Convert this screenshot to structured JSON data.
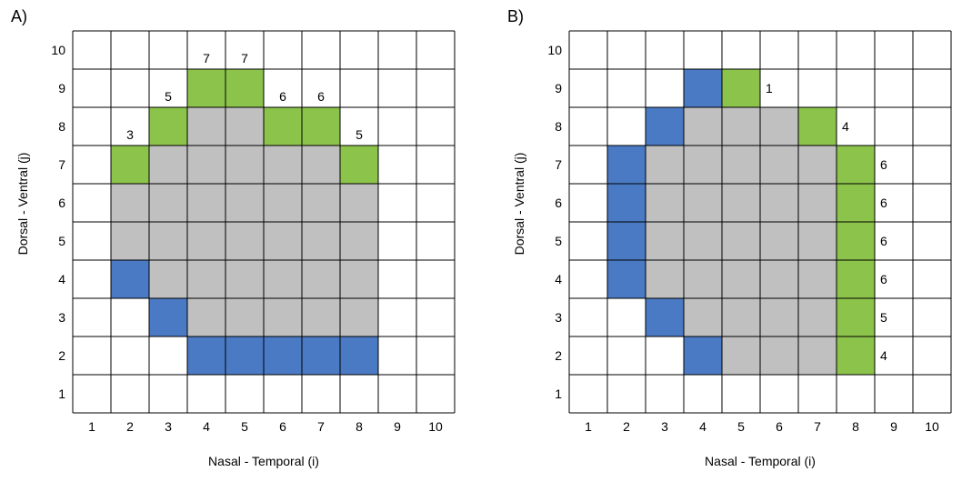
{
  "colors": {
    "gray": "#c0c0c0",
    "green": "#8cc34a",
    "blue": "#4a7ac4",
    "grid": "#000000",
    "background": "#ffffff"
  },
  "panels": [
    {
      "label": "A)",
      "xlabel": "Nasal - Temporal (i)",
      "ylabel": "Dorsal - Ventral (j)",
      "x_ticks": [
        "1",
        "2",
        "3",
        "4",
        "5",
        "6",
        "7",
        "8",
        "9",
        "10"
      ],
      "y_ticks": [
        "1",
        "2",
        "3",
        "4",
        "5",
        "6",
        "7",
        "8",
        "9",
        "10"
      ],
      "gray_cells": [
        [
          3,
          7
        ],
        [
          4,
          7
        ],
        [
          5,
          7
        ],
        [
          6,
          7
        ],
        [
          7,
          7
        ],
        [
          2,
          6
        ],
        [
          3,
          6
        ],
        [
          4,
          6
        ],
        [
          5,
          6
        ],
        [
          6,
          6
        ],
        [
          7,
          6
        ],
        [
          8,
          6
        ],
        [
          2,
          5
        ],
        [
          3,
          5
        ],
        [
          4,
          5
        ],
        [
          5,
          5
        ],
        [
          6,
          5
        ],
        [
          7,
          5
        ],
        [
          8,
          5
        ],
        [
          3,
          4
        ],
        [
          4,
          4
        ],
        [
          5,
          4
        ],
        [
          6,
          4
        ],
        [
          7,
          4
        ],
        [
          8,
          4
        ],
        [
          4,
          3
        ],
        [
          5,
          3
        ],
        [
          6,
          3
        ],
        [
          7,
          3
        ],
        [
          8,
          3
        ],
        [
          4,
          8
        ],
        [
          5,
          8
        ]
      ],
      "green_cells": [
        [
          2,
          7
        ],
        [
          3,
          8
        ],
        [
          4,
          9
        ],
        [
          5,
          9
        ],
        [
          6,
          8
        ],
        [
          7,
          8
        ],
        [
          8,
          7
        ]
      ],
      "blue_cells": [
        [
          2,
          4
        ],
        [
          3,
          3
        ],
        [
          4,
          2
        ],
        [
          5,
          2
        ],
        [
          6,
          2
        ],
        [
          7,
          2
        ],
        [
          8,
          2
        ]
      ],
      "counts": [
        {
          "cell": [
            2,
            8
          ],
          "text": "3"
        },
        {
          "cell": [
            3,
            9
          ],
          "text": "5"
        },
        {
          "cell": [
            4,
            10
          ],
          "text": "7"
        },
        {
          "cell": [
            5,
            10
          ],
          "text": "7"
        },
        {
          "cell": [
            6,
            9
          ],
          "text": "6"
        },
        {
          "cell": [
            7,
            9
          ],
          "text": "6"
        },
        {
          "cell": [
            8,
            8
          ],
          "text": "5"
        }
      ]
    },
    {
      "label": "B)",
      "xlabel": "Nasal - Temporal (i)",
      "ylabel": "Dorsal - Ventral (j)",
      "x_ticks": [
        "1",
        "2",
        "3",
        "4",
        "5",
        "6",
        "7",
        "8",
        "9",
        "10"
      ],
      "y_ticks": [
        "1",
        "2",
        "3",
        "4",
        "5",
        "6",
        "7",
        "8",
        "9",
        "10"
      ],
      "gray_cells": [
        [
          4,
          8
        ],
        [
          5,
          8
        ],
        [
          6,
          8
        ],
        [
          3,
          7
        ],
        [
          4,
          7
        ],
        [
          5,
          7
        ],
        [
          6,
          7
        ],
        [
          7,
          7
        ],
        [
          3,
          6
        ],
        [
          4,
          6
        ],
        [
          5,
          6
        ],
        [
          6,
          6
        ],
        [
          7,
          6
        ],
        [
          3,
          5
        ],
        [
          4,
          5
        ],
        [
          5,
          5
        ],
        [
          6,
          5
        ],
        [
          7,
          5
        ],
        [
          3,
          4
        ],
        [
          4,
          4
        ],
        [
          5,
          4
        ],
        [
          6,
          4
        ],
        [
          7,
          4
        ],
        [
          4,
          3
        ],
        [
          5,
          3
        ],
        [
          6,
          3
        ],
        [
          7,
          3
        ],
        [
          5,
          2
        ],
        [
          6,
          2
        ],
        [
          7,
          2
        ]
      ],
      "green_cells": [
        [
          5,
          9
        ],
        [
          7,
          8
        ],
        [
          8,
          7
        ],
        [
          8,
          6
        ],
        [
          8,
          5
        ],
        [
          8,
          4
        ],
        [
          8,
          3
        ],
        [
          8,
          2
        ]
      ],
      "blue_cells": [
        [
          4,
          9
        ],
        [
          3,
          8
        ],
        [
          2,
          7
        ],
        [
          2,
          6
        ],
        [
          2,
          5
        ],
        [
          2,
          4
        ],
        [
          3,
          3
        ],
        [
          4,
          2
        ]
      ],
      "counts": [
        {
          "cell": [
            6,
            9
          ],
          "text": "1"
        },
        {
          "cell": [
            8,
            8
          ],
          "text": "4"
        },
        {
          "cell": [
            9,
            7
          ],
          "text": "6"
        },
        {
          "cell": [
            9,
            6
          ],
          "text": "6"
        },
        {
          "cell": [
            9,
            5
          ],
          "text": "6"
        },
        {
          "cell": [
            9,
            4
          ],
          "text": "6"
        },
        {
          "cell": [
            9,
            3
          ],
          "text": "5"
        },
        {
          "cell": [
            9,
            2
          ],
          "text": "4"
        }
      ]
    }
  ]
}
